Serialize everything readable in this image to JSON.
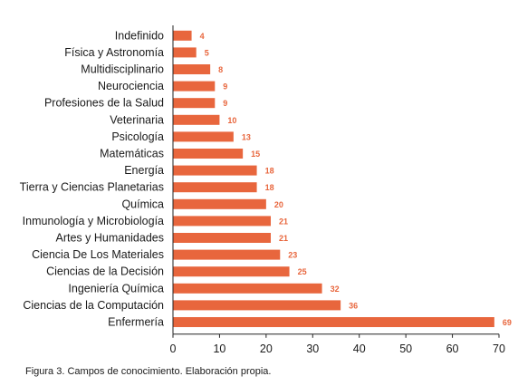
{
  "chart_data": {
    "type": "bar",
    "orientation": "horizontal",
    "categories": [
      "Indefinido",
      "Física y Astronomía",
      "Multidisciplinario",
      "Neurociencia",
      "Profesiones de la Salud",
      "Veterinaria",
      "Psicología",
      "Matemáticas",
      "Energía",
      "Tierra y Ciencias Planetarias",
      "Química",
      "Inmunología y Microbiología",
      "Artes y Humanidades",
      "Ciencia De Los Materiales",
      "Ciencias de la Decisión",
      "Ingeniería Química",
      "Ciencias de la Computación",
      "Enfermería"
    ],
    "values": [
      4,
      5,
      8,
      9,
      9,
      10,
      13,
      15,
      18,
      18,
      20,
      21,
      21,
      23,
      25,
      32,
      36,
      69
    ],
    "xlim": [
      0,
      70
    ],
    "xticks": [
      0,
      10,
      20,
      30,
      40,
      50,
      60,
      70
    ],
    "grid": false,
    "bar_color": "#e8663d",
    "value_label_color": "#e8663d"
  },
  "caption": "Figura 3. Campos de conocimiento. Elaboración propia."
}
